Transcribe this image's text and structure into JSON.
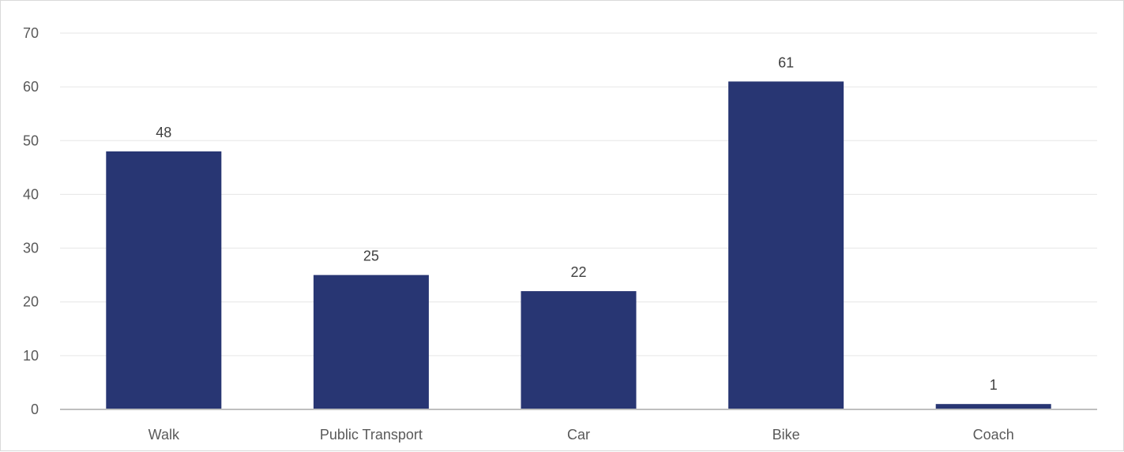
{
  "chart_data": {
    "type": "bar",
    "categories": [
      "Walk",
      "Public Transport",
      "Car",
      "Bike",
      "Coach"
    ],
    "values": [
      48,
      25,
      22,
      61,
      1
    ],
    "data_labels": [
      "48",
      "25",
      "22",
      "61",
      "1"
    ],
    "y_ticks": [
      "0",
      "10",
      "20",
      "30",
      "40",
      "50",
      "60",
      "70"
    ],
    "ylim": [
      0,
      70
    ],
    "grid": true,
    "legend": "none",
    "colors": {
      "bar": "#283673",
      "grid": "#e6e6e6",
      "axis": "#bfbfbf"
    }
  }
}
